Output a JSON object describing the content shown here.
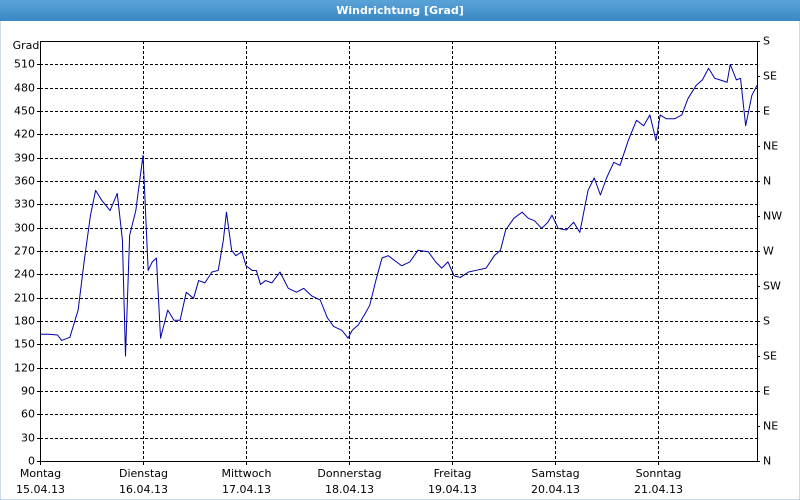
{
  "chart_data": {
    "type": "line",
    "title": "Windrichtung [Grad]",
    "y_label": "Grad",
    "color": "#0000a8",
    "grid": true,
    "xlim": [
      0,
      6.96
    ],
    "xticks": [
      {
        "value": 0,
        "label": "Montag",
        "date": "15.04.13"
      },
      {
        "value": 1,
        "label": "Dienstag",
        "date": "16.04.13"
      },
      {
        "value": 2,
        "label": "Mittwoch",
        "date": "17.04.13"
      },
      {
        "value": 3,
        "label": "Donnerstag",
        "date": "18.04.13"
      },
      {
        "value": 4,
        "label": "Freitag",
        "date": "19.04.13"
      },
      {
        "value": 5,
        "label": "Samstag",
        "date": "20.04.13"
      },
      {
        "value": 6,
        "label": "Sonntag",
        "date": "21.04.13"
      }
    ],
    "ylim": [
      0,
      540
    ],
    "yticks": [
      0,
      30,
      60,
      90,
      120,
      150,
      180,
      210,
      240,
      270,
      300,
      330,
      360,
      390,
      420,
      450,
      480,
      510
    ],
    "y2lim": [
      0,
      540
    ],
    "y2ticks": [
      {
        "value": 0,
        "label": "N"
      },
      {
        "value": 45,
        "label": "NE"
      },
      {
        "value": 90,
        "label": "E"
      },
      {
        "value": 135,
        "label": "SE"
      },
      {
        "value": 180,
        "label": "S"
      },
      {
        "value": 225,
        "label": "SW"
      },
      {
        "value": 270,
        "label": "W"
      },
      {
        "value": 315,
        "label": "NW"
      },
      {
        "value": 360,
        "label": "N"
      },
      {
        "value": 405,
        "label": "NE"
      },
      {
        "value": 450,
        "label": "E"
      },
      {
        "value": 495,
        "label": "SE"
      },
      {
        "value": 540,
        "label": "S"
      }
    ],
    "x": [
      0,
      0.08,
      0.17,
      0.21,
      0.29,
      0.37,
      0.43,
      0.49,
      0.54,
      0.6,
      0.68,
      0.75,
      0.8,
      0.83,
      0.87,
      0.93,
      1.0,
      1.05,
      1.09,
      1.13,
      1.17,
      1.24,
      1.3,
      1.36,
      1.42,
      1.49,
      1.54,
      1.6,
      1.67,
      1.73,
      1.78,
      1.81,
      1.86,
      1.9,
      1.96,
      2.0,
      2.06,
      2.1,
      2.14,
      2.19,
      2.25,
      2.33,
      2.41,
      2.49,
      2.56,
      2.64,
      2.72,
      2.79,
      2.85,
      2.93,
      2.99,
      3.03,
      3.09,
      3.15,
      3.2,
      3.26,
      3.32,
      3.38,
      3.46,
      3.51,
      3.59,
      3.67,
      3.77,
      3.84,
      3.9,
      3.96,
      4.02,
      4.08,
      4.16,
      4.23,
      4.33,
      4.41,
      4.47,
      4.52,
      4.6,
      4.68,
      4.74,
      4.8,
      4.87,
      4.93,
      4.97,
      5.03,
      5.11,
      5.18,
      5.24,
      5.32,
      5.38,
      5.44,
      5.5,
      5.57,
      5.63,
      5.71,
      5.79,
      5.86,
      5.92,
      5.98,
      6.02,
      6.08,
      6.16,
      6.23,
      6.29,
      6.37,
      6.43,
      6.49,
      6.55,
      6.6,
      6.67,
      6.7,
      6.76,
      6.8,
      6.85,
      6.91,
      6.96
    ],
    "values": [
      163,
      163,
      162,
      155,
      159,
      194,
      258,
      316,
      348,
      335,
      322,
      344,
      284,
      135,
      290,
      322,
      393,
      245,
      256,
      261,
      158,
      194,
      181,
      181,
      217,
      209,
      232,
      229,
      243,
      245,
      284,
      320,
      271,
      264,
      269,
      251,
      245,
      245,
      227,
      232,
      229,
      243,
      222,
      217,
      222,
      212,
      207,
      184,
      173,
      168,
      158,
      168,
      175,
      188,
      200,
      232,
      261,
      264,
      256,
      251,
      256,
      271,
      269,
      256,
      248,
      256,
      238,
      236,
      243,
      245,
      248,
      264,
      271,
      297,
      312,
      320,
      312,
      309,
      299,
      307,
      316,
      299,
      297,
      307,
      294,
      348,
      364,
      342,
      364,
      384,
      380,
      412,
      438,
      431,
      445,
      412,
      445,
      440,
      440,
      445,
      466,
      483,
      490,
      505,
      492,
      490,
      487,
      510,
      490,
      492,
      431,
      470,
      483
    ]
  }
}
